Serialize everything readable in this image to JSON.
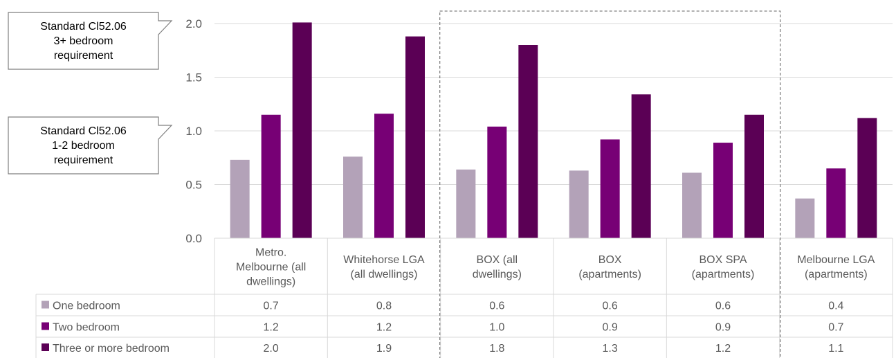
{
  "callouts": [
    {
      "lines": [
        "Standard  Cl52.06",
        "3+ bedroom",
        "requirement"
      ]
    },
    {
      "lines": [
        "Standard  Cl52.06",
        "1-2 bedroom",
        "requirement"
      ]
    }
  ],
  "chart_data": {
    "type": "bar",
    "categories": [
      [
        "Metro.",
        "Melbourne (all",
        "dwellings)"
      ],
      [
        "Whitehorse LGA",
        "(all dwellings)"
      ],
      [
        "BOX (all",
        "dwellings)"
      ],
      [
        "BOX",
        "(apartments)"
      ],
      [
        "BOX SPA",
        "(apartments)"
      ],
      [
        "Melbourne LGA",
        "(apartments)"
      ]
    ],
    "series": [
      {
        "name": "One bedroom",
        "color": "#b3a2b8",
        "values": [
          0.73,
          0.76,
          0.64,
          0.63,
          0.61,
          0.37
        ],
        "labels": [
          "0.7",
          "0.8",
          "0.6",
          "0.6",
          "0.6",
          "0.4"
        ]
      },
      {
        "name": "Two bedroom",
        "color": "#770075",
        "values": [
          1.15,
          1.16,
          1.04,
          0.92,
          0.89,
          0.65
        ],
        "labels": [
          "1.2",
          "1.2",
          "1.0",
          "0.9",
          "0.9",
          "0.7"
        ]
      },
      {
        "name": "Three or more bedroom",
        "color": "#5b0055",
        "values": [
          2.01,
          1.88,
          1.8,
          1.34,
          1.15,
          1.12
        ],
        "labels": [
          "2.0",
          "1.9",
          "1.8",
          "1.3",
          "1.2",
          "1.1"
        ]
      }
    ],
    "ylim": [
      0,
      2.0
    ],
    "yticks": [
      "0.0",
      "0.5",
      "1.0",
      "1.5",
      "2.0"
    ],
    "grid": true,
    "highlight_categories": [
      2,
      4
    ],
    "legend": "data-table"
  }
}
